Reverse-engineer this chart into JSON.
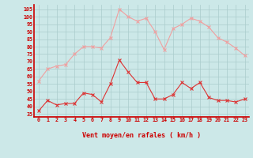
{
  "hours": [
    0,
    1,
    2,
    3,
    4,
    5,
    6,
    7,
    8,
    9,
    10,
    11,
    12,
    13,
    14,
    15,
    16,
    17,
    18,
    19,
    20,
    21,
    22,
    23
  ],
  "wind_mean": [
    37,
    44,
    41,
    42,
    42,
    49,
    48,
    43,
    55,
    71,
    63,
    56,
    56,
    45,
    45,
    48,
    56,
    52,
    56,
    46,
    44,
    44,
    43,
    45
  ],
  "wind_gust": [
    57,
    65,
    67,
    68,
    75,
    80,
    80,
    79,
    86,
    105,
    100,
    97,
    99,
    90,
    78,
    92,
    95,
    99,
    97,
    93,
    86,
    83,
    79,
    74
  ],
  "mean_color": "#dd3333",
  "gust_color": "#f0a0a0",
  "bg_color": "#cce8e8",
  "grid_color": "#aacccc",
  "axis_color": "#cc0000",
  "xlabel": "Vent moyen/en rafales ( km/h )",
  "ylabel_ticks": [
    35,
    40,
    45,
    50,
    55,
    60,
    65,
    70,
    75,
    80,
    85,
    90,
    95,
    100,
    105
  ],
  "ylim": [
    33,
    108
  ],
  "xlim": [
    -0.5,
    23.5
  ],
  "tick_arrow_color": "#cc0000"
}
